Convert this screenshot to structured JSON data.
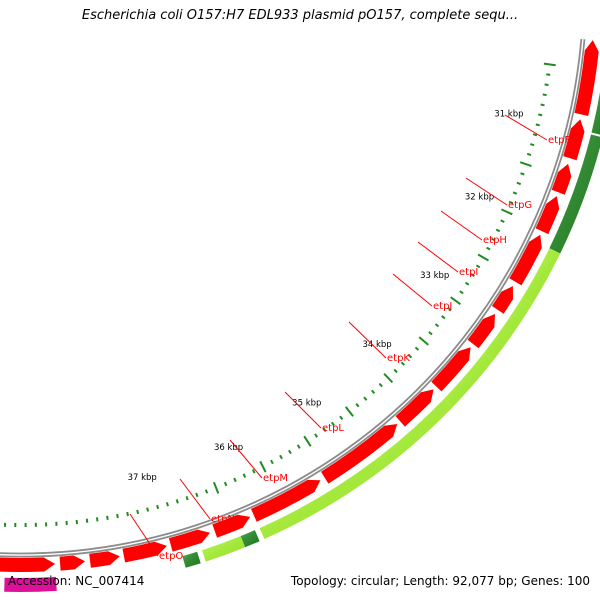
{
  "title": "Escherichia coli O157:H7 EDL933 plasmid pO157, complete sequ...",
  "accession_text": "Accession: NC_007414",
  "summary_text": "Topology: circular; Length: 92,077 bp; Genes: 100",
  "colors": {
    "backbone": "#8c8c8c",
    "gene_forward": "#ff0000",
    "gene_reverse": "#dd1199",
    "gc_high": "#228b22",
    "gc_low": "#adff2f",
    "ticks": "#228b22",
    "label_line": "#ff0000"
  },
  "scale_labels": [
    "31 kbp",
    "32 kbp",
    "33 kbp",
    "34 kbp",
    "35 kbp",
    "36 kbp",
    "37 kbp"
  ],
  "genes": [
    "etpF",
    "etpG",
    "etpH",
    "etpI",
    "etpJ",
    "etpK",
    "etpL",
    "etpM",
    "etpN",
    "etpO"
  ]
}
